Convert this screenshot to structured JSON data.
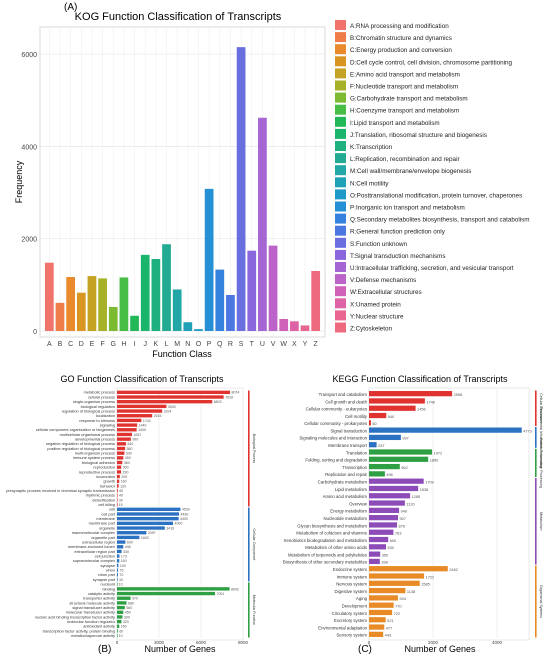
{
  "chart_data": [
    {
      "type": "bar",
      "panel_label": "(A)",
      "title": "KOG Function Classification of Transcripts",
      "xlabel": "Function Class",
      "ylabel": "Frequency",
      "ylim": [
        0,
        6500
      ],
      "yticks": [
        0,
        2000,
        4000,
        6000
      ],
      "grid": true,
      "legend_position": "right",
      "categories": [
        "A",
        "B",
        "C",
        "D",
        "E",
        "F",
        "G",
        "H",
        "I",
        "J",
        "K",
        "L",
        "M",
        "N",
        "O",
        "P",
        "Q",
        "R",
        "S",
        "T",
        "U",
        "V",
        "W",
        "X",
        "Y",
        "Z"
      ],
      "values": [
        1480,
        610,
        1170,
        830,
        1190,
        1140,
        520,
        1160,
        330,
        1650,
        1560,
        1880,
        900,
        190,
        40,
        3080,
        1330,
        780,
        6150,
        1740,
        4620,
        1850,
        260,
        210,
        120,
        1300
      ],
      "colors": [
        "#f0746b",
        "#ee7d4a",
        "#e98a2c",
        "#d99522",
        "#c4a324",
        "#a6b128",
        "#7cba32",
        "#47bd45",
        "#22b858",
        "#1ab56c",
        "#1eb07f",
        "#22ab92",
        "#21a7a6",
        "#1fa2b8",
        "#1f9ac8",
        "#2590d6",
        "#3581de",
        "#4a77e2",
        "#6a6fe0",
        "#8a67dc",
        "#a565d3",
        "#bb63c8",
        "#cf62b8",
        "#de62a6",
        "#e86592",
        "#ee6b7f"
      ],
      "legend": [
        "A:RNA processing and modification",
        "B:Chromatin structure and dynamics",
        "C:Energy production and conversion",
        "D:Cell cycle control, cell division, chromosome partitioning",
        "E:Amino acid transport and metabolism",
        "F:Nucleotide transport and metabolism",
        "G:Carbohydrate transport and metabolism",
        "H:Coenzyme transport and metabolism",
        "I:Lipid transport and metabolism",
        "J:Translation, ribosomal structure and biogenesis",
        "K:Transcription",
        "L:Replication, recombination and repair",
        "M:Cell wall/membrane/envelope biogenesis",
        "N:Cell motility",
        "O:Posttranslational modification, protein turnover, chaperones",
        "P:Inorganic ion transport and metabolism",
        "Q:Secondary metabolites biosynthesis, transport and catabolism",
        "R:General function prediction only",
        "S:Function unknown",
        "T:Signal transduction mechanisms",
        "U:Intracellular trafficking, secretion, and vesicular transport",
        "V:Defense mechanisms",
        "W:Extracellular structures",
        "X:Unamed protein",
        "Y:Nuclear structure",
        "Z:Cytoskeleton"
      ]
    },
    {
      "type": "bar",
      "orientation": "horizontal",
      "panel_label": "(B)",
      "title": "GO Function Classification of Transcripts",
      "xlabel": "Number of Genes",
      "xlim": [
        0,
        9000
      ],
      "xticks": [
        0,
        3000,
        6000,
        9000
      ],
      "grid": true,
      "groups": [
        {
          "name": "Biological Process",
          "color": "#e0332f",
          "start": 0,
          "end": 24
        },
        {
          "name": "Cellular Component",
          "color": "#2b72c2",
          "start": 25,
          "end": 40
        },
        {
          "name": "Molecular Function",
          "color": "#2ea043",
          "start": 41,
          "end": 52
        }
      ],
      "categories": [
        "metabolic process",
        "cellular process",
        "single-organism process",
        "biological regulation",
        "regulation of biological process",
        "localization",
        "response to stimulus",
        "signaling",
        "cellular component organization or biogenesis",
        "multicellular organismal process",
        "developmental process",
        "negative regulation of biological process",
        "positive regulation of biological process",
        "multi-organism process",
        "immune system process",
        "biological adhesion",
        "reproduction",
        "reproductive process",
        "locomotion",
        "growth",
        "behavior",
        "presynaptic process involved in chemical synaptic transmission",
        "rhythmic process",
        "detoxification",
        "cell killing",
        "cell",
        "cell part",
        "membrane",
        "membrane part",
        "organelle",
        "macromolecular complex",
        "organelle part",
        "extracellular region",
        "membrane-enclosed lumen",
        "extracellular region part",
        "cell junction",
        "supramolecular complex",
        "synapse",
        "virion",
        "virion part",
        "synapse part",
        "nucleoid",
        "binding",
        "catalytic activity",
        "transporter activity",
        "structural molecule activity",
        "signal transducer activity",
        "molecular transducer activity",
        "nucleic acid binding transcription factor activity",
        "molecular function regulator",
        "antioxidant activity",
        "transcription factor activity, protein binding",
        "metallochaperone activity"
      ],
      "values": [
        8074,
        7618,
        6803,
        3530,
        3224,
        2515,
        1742,
        1440,
        1400,
        1067,
        990,
        640,
        580,
        530,
        450,
        380,
        300,
        290,
        200,
        160,
        120,
        60,
        40,
        30,
        15,
        4530,
        4430,
        4400,
        4000,
        3416,
        2097,
        1600,
        600,
        448,
        330,
        173,
        160,
        100,
        75,
        70,
        40,
        10,
        8042,
        7001,
        970,
        680,
        560,
        450,
        390,
        320,
        160,
        60,
        10
      ]
    },
    {
      "type": "bar",
      "orientation": "horizontal",
      "panel_label": "(C)",
      "title": "KEGG Function Classification of Transcripts",
      "xlabel": "Number of Genes",
      "xlim": [
        0,
        5000
      ],
      "xticks": [
        0,
        2000,
        4000
      ],
      "grid": true,
      "groups": [
        {
          "name": "Cellular Processes",
          "color": "#e0332f",
          "start": 0,
          "end": 4
        },
        {
          "name": "Environmental Information Processing",
          "color": "#2b72c2",
          "start": 5,
          "end": 7
        },
        {
          "name": "Genetic Information Processing",
          "color": "#2ea043",
          "start": 8,
          "end": 11
        },
        {
          "name": "Metabolism",
          "color": "#8d4bb8",
          "start": 12,
          "end": 23
        },
        {
          "name": "Organismal Systems",
          "color": "#e88a25",
          "start": 24,
          "end": 33
        }
      ],
      "categories": [
        "Transport and catabolism",
        "Cell growth and death",
        "Cellular community - eukaryotes",
        "Cell motility",
        "Cellular community - prokaryotes",
        "Signal transduction",
        "Signaling molecules and interaction",
        "Membrane transport",
        "Translation",
        "Folding, sorting and degradation",
        "Transcription",
        "Replication and repair",
        "Carbohydrate metabolism",
        "Lipid metabolism",
        "Amino acid metabolism",
        "Overview",
        "Energy metabolism",
        "Nucleotide metabolism",
        "Glycan biosynthesis and metabolism",
        "Metabolism of cofactors and vitamins",
        "Xenobiotics biodegradation and metabolism",
        "Metabolism of other amino acids",
        "Metabolism of terpenoids and polyketides",
        "Biosynthesis of other secondary metabolites",
        "Endocrine system",
        "Immune system",
        "Nervous system",
        "Digestive system",
        "Aging",
        "Development",
        "Circulatory system",
        "Excretory system",
        "Environmental adaptation",
        "Sensory system"
      ],
      "values": [
        2598,
        1746,
        1456,
        540,
        60,
        4773,
        997,
        237,
        1972,
        1850,
        962,
        496,
        1709,
        1538,
        1285,
        1120,
        940,
        907,
        876,
        763,
        600,
        530,
        350,
        338,
        2462,
        1722,
        1585,
        1138,
        904,
        770,
        722,
        521,
        477,
        443
      ]
    }
  ]
}
